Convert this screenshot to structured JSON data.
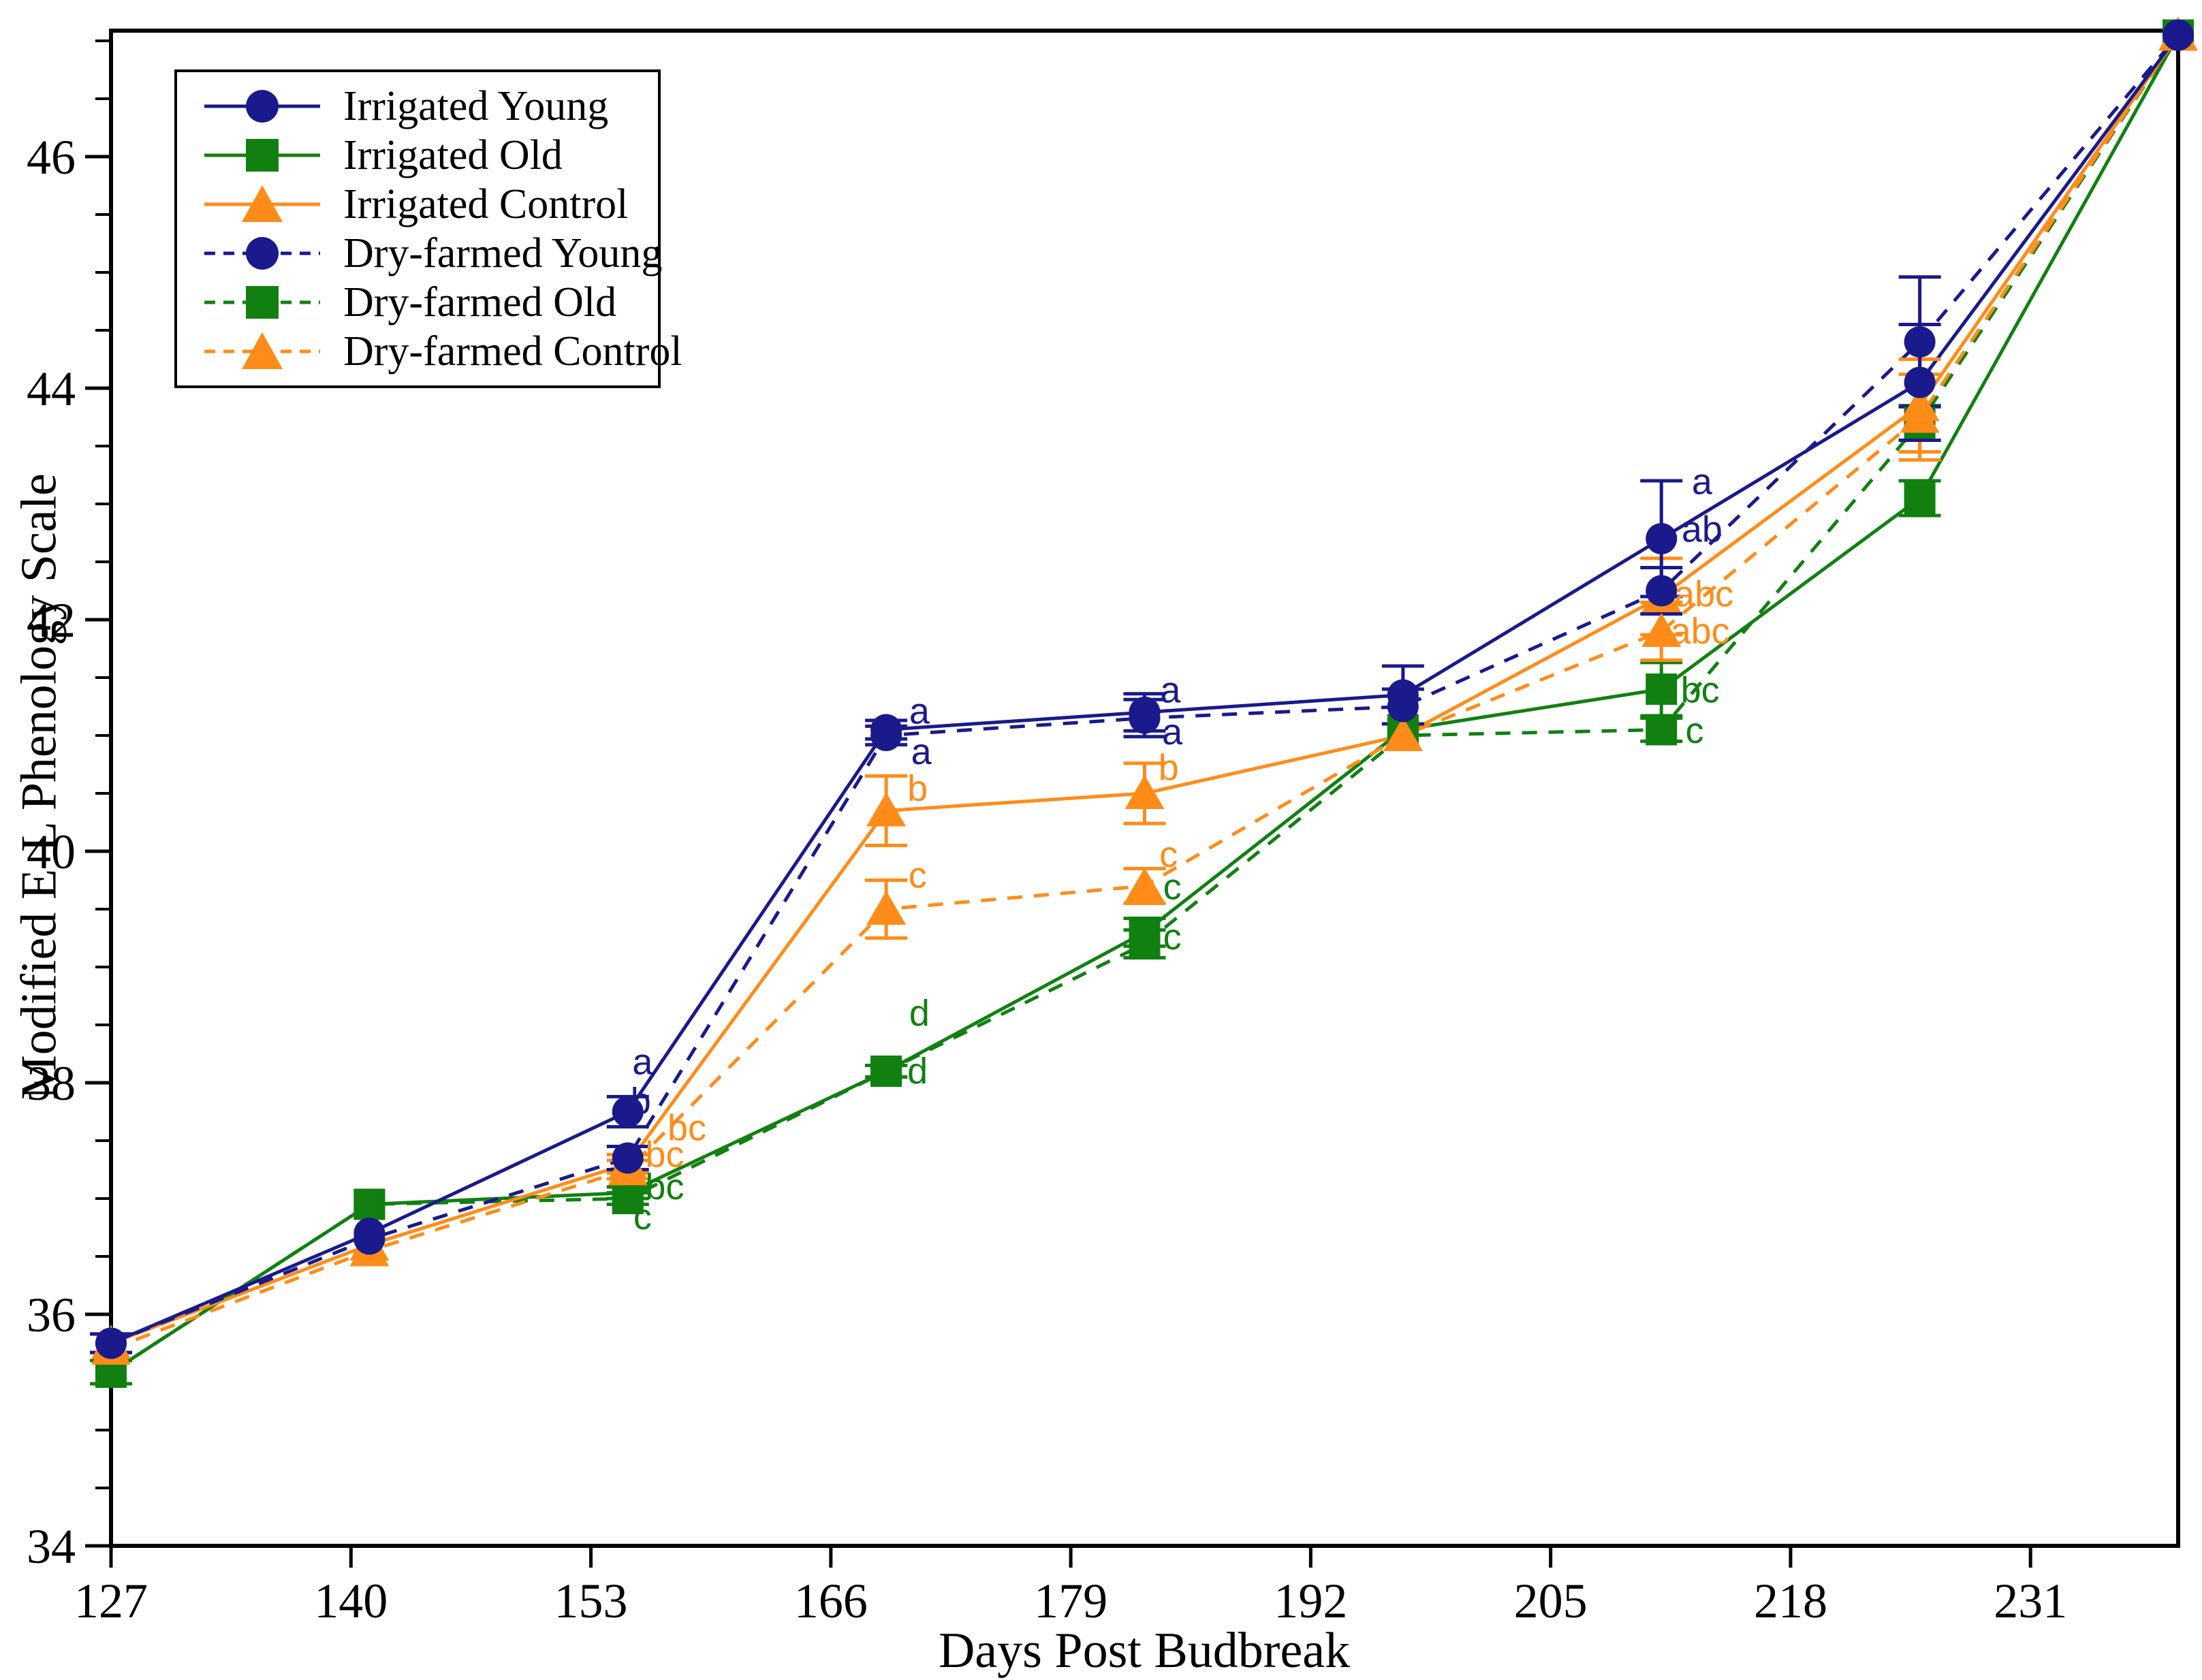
{
  "chart_data": {
    "type": "line",
    "title": "",
    "xlabel": "Days Post Budbreak",
    "ylabel": "Modified E-L Phenology Scale",
    "x_ticks": [
      127,
      140,
      153,
      166,
      179,
      192,
      205,
      218,
      231
    ],
    "y_ticks": [
      34,
      36,
      38,
      40,
      42,
      44,
      46
    ],
    "y_minor_step": 0.5,
    "xlim": [
      127,
      239
    ],
    "ylim": [
      34,
      47.1
    ],
    "grid": "off",
    "legend_position": "top-left",
    "frame_color": "#000000",
    "x_days": [
      127,
      141,
      155,
      169,
      183,
      197,
      211,
      225,
      239
    ],
    "series": [
      {
        "name": "Irrigated Young",
        "marker": "circle",
        "line": "solid",
        "color": "#1A1A8C",
        "values": [
          35.75,
          36.7,
          37.75,
          41.05,
          41.2,
          41.35,
          42.7,
          44.05,
          47.05
        ],
        "errors": [
          0.08,
          0,
          0.13,
          0.08,
          0.16,
          0.25,
          0.5,
          0.5,
          0
        ]
      },
      {
        "name": "Irrigated Old",
        "marker": "square",
        "line": "solid",
        "color": "#118011",
        "values": [
          35.5,
          36.95,
          37.05,
          38.1,
          39.3,
          41.05,
          41.4,
          43.05,
          47.05
        ],
        "errors": [
          0.1,
          0,
          0.05,
          0.05,
          0.12,
          0,
          0.23,
          0.15,
          0
        ]
      },
      {
        "name": "Irrigated Control",
        "marker": "triangle",
        "line": "solid",
        "color": "#FF8C19",
        "values": [
          35.75,
          36.6,
          37.3,
          40.35,
          40.5,
          41.0,
          42.2,
          43.85,
          47.05
        ],
        "errors": [
          0,
          0,
          0.08,
          0.3,
          0.26,
          0,
          0.33,
          0.4,
          0
        ]
      },
      {
        "name": "Dry-farmed Young",
        "marker": "circle",
        "line": "dashed",
        "color": "#1A1A8C",
        "values": [
          35.75,
          36.65,
          37.35,
          41.0,
          41.15,
          41.25,
          42.25,
          44.4,
          47.05
        ],
        "errors": [
          0.08,
          0,
          0.1,
          0.08,
          0.16,
          0.15,
          0.2,
          0.56,
          0
        ]
      },
      {
        "name": "Dry-farmed Old",
        "marker": "square",
        "line": "dashed",
        "color": "#118011",
        "values": [
          35.5,
          36.95,
          37.0,
          38.1,
          39.2,
          41.0,
          41.05,
          43.7,
          47.05
        ],
        "errors": [
          0.1,
          0,
          0.05,
          0.05,
          0.12,
          0,
          0.1,
          0.15,
          0
        ]
      },
      {
        "name": "Dry-farmed Control",
        "marker": "triangle",
        "line": "dashed",
        "color": "#FF8C19",
        "values": [
          35.7,
          36.55,
          37.25,
          39.5,
          39.7,
          41.0,
          41.9,
          43.75,
          47.05
        ],
        "errors": [
          0,
          0,
          0.08,
          0.25,
          0.15,
          0,
          0.25,
          0.37,
          0
        ]
      }
    ],
    "annotations": [
      {
        "day": 155.8,
        "value": 38.18,
        "text": "a",
        "series": 0
      },
      {
        "day": 155.7,
        "value": 37.84,
        "text": "b",
        "series": 3
      },
      {
        "day": 158.2,
        "value": 37.61,
        "text": "bc",
        "series": 2
      },
      {
        "day": 157.0,
        "value": 37.38,
        "text": "bc",
        "series": 5
      },
      {
        "day": 157.0,
        "value": 37.1,
        "text": "bc",
        "series": 1
      },
      {
        "day": 155.8,
        "value": 36.84,
        "text": "c",
        "series": 4
      },
      {
        "day": 170.8,
        "value": 41.21,
        "text": "a",
        "series": 0
      },
      {
        "day": 170.9,
        "value": 40.86,
        "text": "a",
        "series": 3
      },
      {
        "day": 170.7,
        "value": 40.54,
        "text": "b",
        "series": 2
      },
      {
        "day": 170.7,
        "value": 39.79,
        "text": "c",
        "series": 5
      },
      {
        "day": 170.8,
        "value": 38.6,
        "text": "d",
        "series": 1
      },
      {
        "day": 170.7,
        "value": 38.1,
        "text": "d",
        "series": 4
      },
      {
        "day": 184.4,
        "value": 41.39,
        "text": "a",
        "series": 0
      },
      {
        "day": 184.5,
        "value": 41.03,
        "text": "a",
        "series": 3
      },
      {
        "day": 184.3,
        "value": 40.72,
        "text": "b",
        "series": 2
      },
      {
        "day": 184.3,
        "value": 39.97,
        "text": "c",
        "series": 5
      },
      {
        "day": 184.5,
        "value": 39.69,
        "text": "c",
        "series": 1
      },
      {
        "day": 184.5,
        "value": 39.26,
        "text": "c",
        "series": 4
      },
      {
        "day": 213.2,
        "value": 43.19,
        "text": "a",
        "series": 0
      },
      {
        "day": 213.2,
        "value": 42.78,
        "text": "ab",
        "series": 3
      },
      {
        "day": 213.3,
        "value": 42.22,
        "text": "abc",
        "series": 2
      },
      {
        "day": 213.1,
        "value": 41.9,
        "text": "abc",
        "series": 5
      },
      {
        "day": 213.1,
        "value": 41.39,
        "text": "bc",
        "series": 1
      },
      {
        "day": 212.8,
        "value": 41.04,
        "text": "c",
        "series": 4
      }
    ]
  }
}
